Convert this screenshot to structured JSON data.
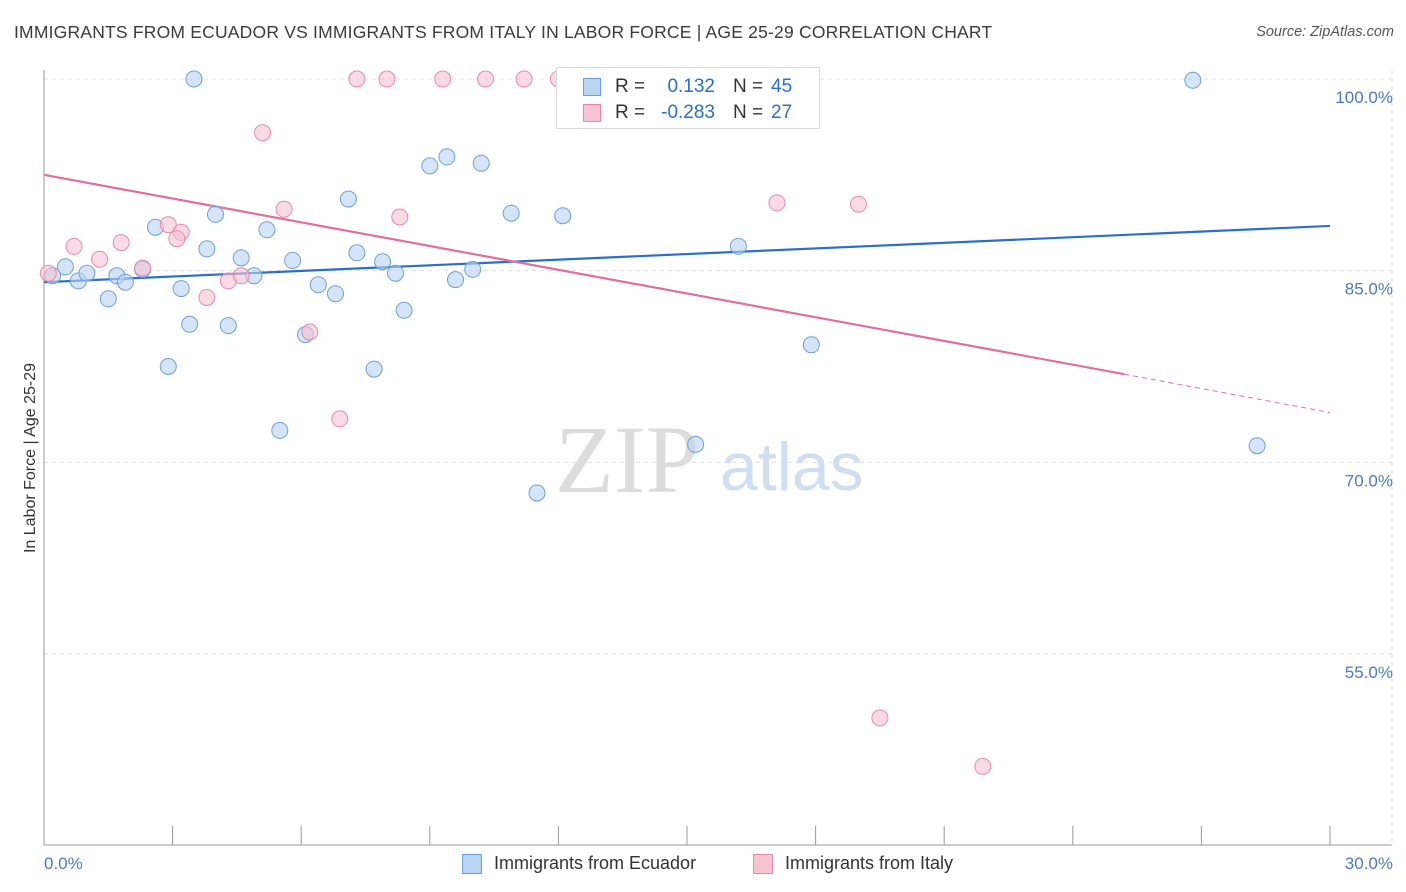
{
  "title": "IMMIGRANTS FROM ECUADOR VS IMMIGRANTS FROM ITALY IN LABOR FORCE | AGE 25-29 CORRELATION CHART",
  "source": "Source: ZipAtlas.com",
  "watermark": {
    "zip": "ZIP",
    "atlas": "atlas"
  },
  "legend": {
    "rows": [
      {
        "r_label": "R =",
        "r_value": "0.132",
        "n_label": "N =",
        "n_value": "45"
      },
      {
        "r_label": "R =",
        "r_value": "-0.283",
        "n_label": "N =",
        "n_value": "27"
      }
    ]
  },
  "bottom_legend": {
    "ecuador": "Immigrants from Ecuador",
    "italy": "Immigrants from Italy"
  },
  "colors": {
    "ecuador_fill": "#b9d3f2",
    "ecuador_stroke": "#6f9fd8",
    "ecuador_line": "#2a6fcb",
    "italy_fill": "#f7c2d2",
    "italy_stroke": "#e88aa9",
    "italy_line": "#e0709a",
    "grid": "#dddddd",
    "tick_label": "#4a7cc0"
  },
  "chart_data": {
    "type": "scatter",
    "title": "IMMIGRANTS FROM ECUADOR VS IMMIGRANTS FROM ITALY IN LABOR FORCE | AGE 25-29 CORRELATION CHART",
    "xlabel": "",
    "ylabel": "In Labor Force | Age 25-29",
    "xlim": [
      0,
      30
    ],
    "ylim": [
      40,
      102
    ],
    "x_tick_labels": [
      "0.0%",
      "30.0%"
    ],
    "y_ticks": [
      100,
      85,
      70,
      55
    ],
    "y_tick_labels": [
      "100.0%",
      "85.0%",
      "70.0%",
      "55.0%"
    ],
    "grid": true,
    "series": [
      {
        "name": "Immigrants from Ecuador",
        "points": [
          [
            0.2,
            84.6
          ],
          [
            0.5,
            85.3
          ],
          [
            0.8,
            84.2
          ],
          [
            1.0,
            84.8
          ],
          [
            1.5,
            82.8
          ],
          [
            1.7,
            84.6
          ],
          [
            1.9,
            84.1
          ],
          [
            2.3,
            85.1
          ],
          [
            2.6,
            88.4
          ],
          [
            2.9,
            77.5
          ],
          [
            3.2,
            83.6
          ],
          [
            3.4,
            80.8
          ],
          [
            4.0,
            89.4
          ],
          [
            3.8,
            86.7
          ],
          [
            4.3,
            80.7
          ],
          [
            4.6,
            86.0
          ],
          [
            4.9,
            84.6
          ],
          [
            5.2,
            88.2
          ],
          [
            5.5,
            72.5
          ],
          [
            5.8,
            85.8
          ],
          [
            6.1,
            80.0
          ],
          [
            6.4,
            83.9
          ],
          [
            6.8,
            83.2
          ],
          [
            7.1,
            90.6
          ],
          [
            7.3,
            86.4
          ],
          [
            7.7,
            77.3
          ],
          [
            7.9,
            85.7
          ],
          [
            8.2,
            84.8
          ],
          [
            8.4,
            81.9
          ],
          [
            9.0,
            93.2
          ],
          [
            9.4,
            93.9
          ],
          [
            9.6,
            84.3
          ],
          [
            10.0,
            85.1
          ],
          [
            10.2,
            93.4
          ],
          [
            10.9,
            89.5
          ],
          [
            11.5,
            67.6
          ],
          [
            12.1,
            89.3
          ],
          [
            12.2,
            100.0
          ],
          [
            12.6,
            99.9
          ],
          [
            15.2,
            71.4
          ],
          [
            16.2,
            86.9
          ],
          [
            17.9,
            79.2
          ],
          [
            26.8,
            99.9
          ],
          [
            28.3,
            71.3
          ],
          [
            3.5,
            100.0
          ]
        ]
      },
      {
        "name": "Immigrants from Italy",
        "points": [
          [
            0.1,
            84.8
          ],
          [
            0.7,
            86.9
          ],
          [
            1.3,
            85.9
          ],
          [
            1.8,
            87.2
          ],
          [
            2.3,
            85.2
          ],
          [
            2.9,
            88.6
          ],
          [
            3.2,
            88.0
          ],
          [
            3.8,
            82.9
          ],
          [
            4.3,
            84.2
          ],
          [
            4.6,
            84.6
          ],
          [
            5.1,
            95.8
          ],
          [
            5.6,
            89.8
          ],
          [
            6.2,
            80.2
          ],
          [
            6.9,
            73.4
          ],
          [
            7.3,
            100.0
          ],
          [
            8.0,
            100.0
          ],
          [
            8.3,
            89.2
          ],
          [
            9.3,
            100.0
          ],
          [
            10.3,
            100.0
          ],
          [
            11.2,
            100.0
          ],
          [
            12.3,
            98.0
          ],
          [
            17.1,
            90.3
          ],
          [
            19.0,
            90.2
          ],
          [
            19.5,
            50.0
          ],
          [
            21.9,
            46.2
          ],
          [
            12.0,
            100.0
          ],
          [
            3.1,
            87.5
          ]
        ]
      }
    ],
    "trend_lines": [
      {
        "series": "Immigrants from Ecuador",
        "x": [
          0,
          30
        ],
        "y": [
          84.1,
          88.5
        ],
        "style": "solid"
      },
      {
        "series": "Immigrants from Italy",
        "x": [
          0,
          25.2
        ],
        "y": [
          92.5,
          76.9
        ],
        "style": "solid"
      },
      {
        "series": "Immigrants from Italy",
        "x": [
          25.2,
          30
        ],
        "y": [
          76.9,
          73.9
        ],
        "style": "dashed"
      }
    ]
  }
}
